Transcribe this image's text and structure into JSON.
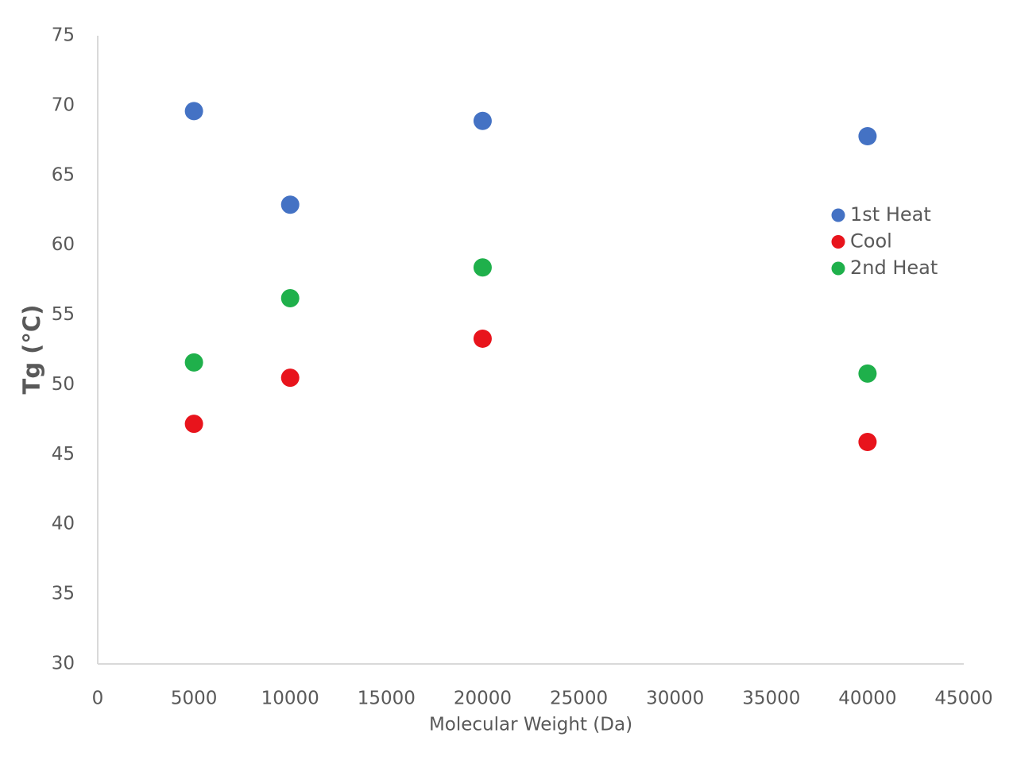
{
  "chart_data": {
    "type": "scatter",
    "x_label": "Molecular Weight (Da)",
    "y_label": "Tg (°C)",
    "x": [
      5000,
      10000,
      20000,
      40000
    ],
    "series": [
      {
        "name": "1st Heat",
        "color": "#4472c4",
        "values": [
          69.6,
          62.9,
          68.9,
          67.8
        ]
      },
      {
        "name": "Cool",
        "color": "#e8141c",
        "values": [
          47.2,
          50.5,
          53.3,
          45.9
        ]
      },
      {
        "name": "2nd Heat",
        "color": "#1fb04b",
        "values": [
          51.6,
          56.2,
          58.4,
          50.8
        ]
      }
    ],
    "xlim": [
      0,
      45000
    ],
    "xticks": [
      0,
      5000,
      10000,
      15000,
      20000,
      25000,
      30000,
      35000,
      40000,
      45000
    ],
    "ylim": [
      30,
      75
    ],
    "yticks": [
      30,
      35,
      40,
      45,
      50,
      55,
      60,
      65,
      70,
      75
    ],
    "grid": false,
    "legend": "right"
  }
}
